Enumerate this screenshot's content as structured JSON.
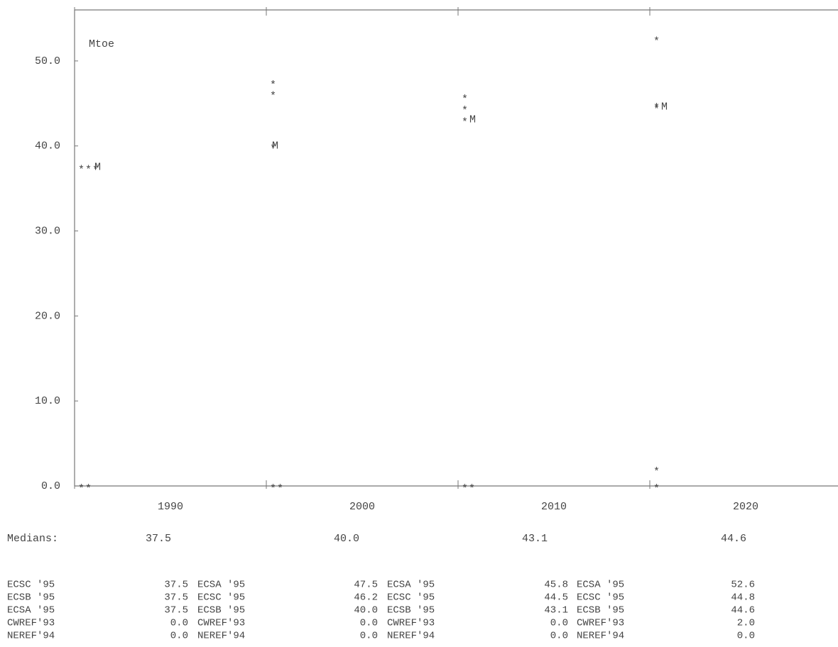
{
  "chart_data": {
    "type": "character-plot",
    "y_label": "Mtoe",
    "categories": [
      "1990",
      "2000",
      "2010",
      "2020"
    ],
    "ylim": [
      0,
      56
    ],
    "yticks": [
      {
        "value": 0,
        "label": "0.0"
      },
      {
        "value": 10,
        "label": "10.0"
      },
      {
        "value": 20,
        "label": "20.0"
      },
      {
        "value": 30,
        "label": "30.0"
      },
      {
        "value": 40,
        "label": "40.0"
      },
      {
        "value": 50,
        "label": "50.0"
      }
    ],
    "color": "#444444",
    "series_marker": "*",
    "median_marker": "M",
    "series": [
      {
        "values": [
          37.5,
          47.5,
          45.8,
          52.6
        ]
      },
      {
        "values": [
          37.5,
          46.2,
          44.5,
          44.8
        ]
      },
      {
        "values": [
          37.5,
          40.0,
          43.1,
          44.6
        ]
      },
      {
        "values": [
          0,
          0,
          0,
          2.0
        ]
      },
      {
        "values": [
          0,
          0,
          0,
          0
        ]
      }
    ],
    "medians": {
      "name": "Medians:",
      "values": [
        37.5,
        40.0,
        43.1,
        44.6
      ],
      "value_labels": [
        "37.5",
        "40.0",
        "43.1",
        "44.6"
      ]
    },
    "table": {
      "rows": [
        [
          "ECSC '95",
          "37.5",
          "ECSA '95",
          "47.5",
          "ECSA '95",
          "45.8",
          "ECSA '95",
          "52.6"
        ],
        [
          "ECSB '95",
          "37.5",
          "ECSC '95",
          "46.2",
          "ECSC '95",
          "44.5",
          "ECSC '95",
          "44.8"
        ],
        [
          "ECSA '95",
          "37.5",
          "ECSB '95",
          "40.0",
          "ECSB '95",
          "43.1",
          "ECSB '95",
          "44.6"
        ],
        [
          "CWREF'93",
          "0.0",
          "CWREF'93",
          "0.0",
          "CWREF'93",
          "0.0",
          "CWREF'93",
          "2.0"
        ],
        [
          "NEREF'94",
          "0.0",
          "NEREF'94",
          "0.0",
          "NEREF'94",
          "0.0",
          "NEREF'94",
          "0.0"
        ]
      ]
    }
  }
}
